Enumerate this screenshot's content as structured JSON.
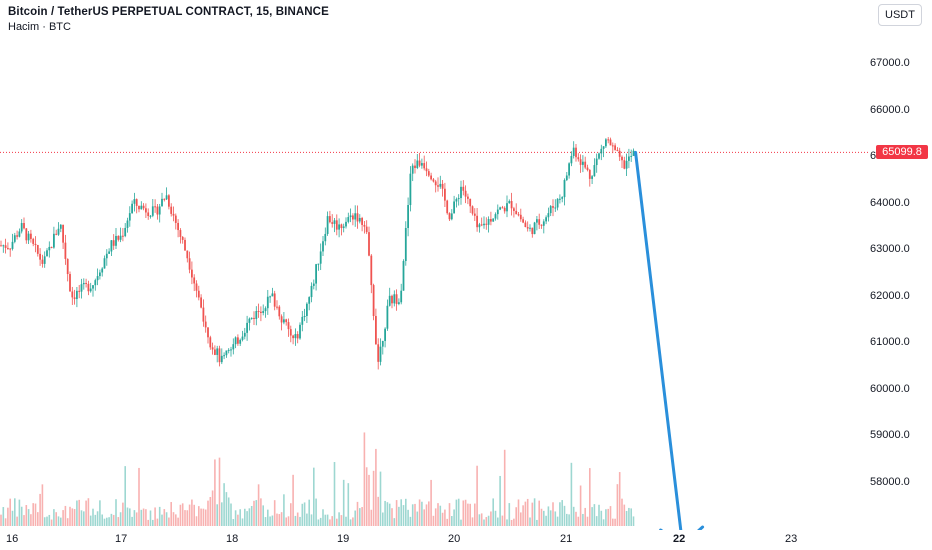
{
  "legend": {
    "symbol": "Bitcoin / TetherUS PERPETUAL CONTRACT, 15, BINANCE",
    "volume_label": "Hacim · BTC"
  },
  "price_axis": {
    "unit_button": "USDT",
    "ticks": [
      "67000.0",
      "66000.0",
      "65000.0",
      "64000.0",
      "63000.0",
      "62000.0",
      "61000.0",
      "60000.0",
      "59000.0",
      "58000.0"
    ],
    "last_price": "65099.8"
  },
  "time_axis": {
    "labels": [
      "16",
      "17",
      "18",
      "19",
      "20",
      "21",
      "22",
      "23"
    ],
    "highlighted": "22"
  },
  "colors": {
    "up": "#26a69a",
    "down": "#ef5350",
    "arrow": "#2a8fdb",
    "last_price": "#f23645"
  },
  "chart_data": {
    "type": "candlestick",
    "ylim": [
      57300,
      67900
    ],
    "x_labels": [
      "16",
      "17",
      "18",
      "19",
      "20",
      "21",
      "22",
      "23"
    ],
    "last_price": 65099.8,
    "price_path": [
      [
        "16",
        63100
      ],
      [
        "16.1",
        63500
      ],
      [
        "16.3",
        62700
      ],
      [
        "16.45",
        63600
      ],
      [
        "16.55",
        62000
      ],
      [
        "16.75",
        62300
      ],
      [
        "16.9",
        63100
      ],
      [
        "17",
        63300
      ],
      [
        "17.1",
        64000
      ],
      [
        "17.3",
        63800
      ],
      [
        "17.4",
        64200
      ],
      [
        "17.6",
        62800
      ],
      [
        "17.8",
        61000
      ],
      [
        "17.9",
        60600
      ],
      [
        "18",
        60900
      ],
      [
        "18.15",
        61500
      ],
      [
        "18.35",
        62000
      ],
      [
        "18.55",
        61000
      ],
      [
        "18.7",
        62100
      ],
      [
        "18.85",
        63700
      ],
      [
        "18.95",
        63500
      ],
      [
        "19.1",
        63800
      ],
      [
        "19.2",
        63300
      ],
      [
        "19.3",
        60600
      ],
      [
        "19.4",
        61900
      ],
      [
        "19.5",
        62000
      ],
      [
        "19.6",
        64800
      ],
      [
        "19.7",
        64900
      ],
      [
        "19.85",
        64400
      ],
      [
        "19.95",
        63700
      ],
      [
        "20.05",
        64400
      ],
      [
        "20.2",
        63400
      ],
      [
        "20.35",
        63800
      ],
      [
        "20.5",
        64000
      ],
      [
        "20.65",
        63400
      ],
      [
        "20.8",
        63700
      ],
      [
        "20.95",
        64200
      ],
      [
        "21.05",
        65200
      ],
      [
        "21.2",
        64600
      ],
      [
        "21.35",
        65400
      ],
      [
        "21.5",
        64800
      ],
      [
        "21.6",
        65100
      ]
    ],
    "volume_spikes": [
      "17.85",
      "19.25"
    ],
    "projection": {
      "from": [
        "21.7",
        65099.8
      ],
      "to": [
        "22.05",
        57300
      ]
    }
  }
}
